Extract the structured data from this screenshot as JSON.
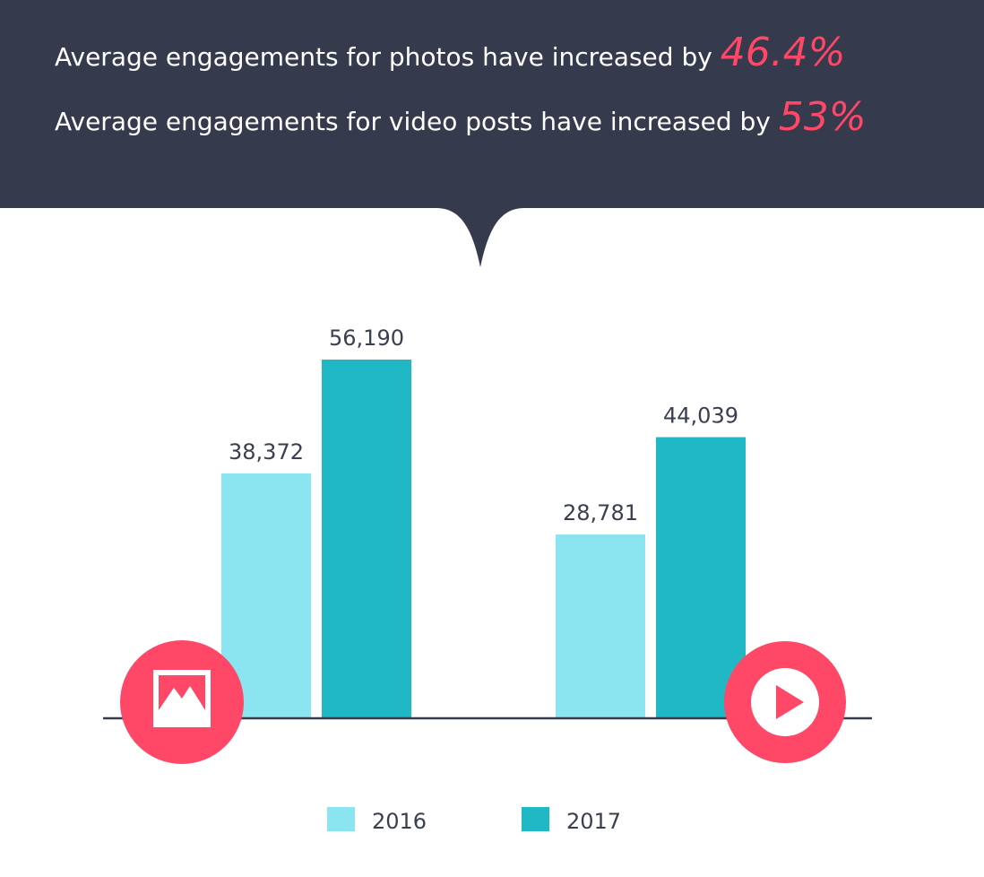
{
  "headline": {
    "line1_text": "Average engagements for photos have increased by",
    "line1_pct": "46.4%",
    "line2_text": "Average engagements for video posts have increased by",
    "line2_pct": "53%"
  },
  "colors": {
    "banner": "#353a4d",
    "accent": "#ff4767",
    "series_2016": "#8ae5f1",
    "series_2017": "#21b8c5",
    "baseline": "#353a4d",
    "label_text": "#3a3f4f"
  },
  "icons": {
    "photos": "image-icon",
    "videos": "play-icon"
  },
  "chart_data": {
    "type": "bar",
    "categories": [
      "Photos",
      "Video posts"
    ],
    "series": [
      {
        "name": "2016",
        "values": [
          38372,
          28781
        ],
        "labels": [
          "38,372",
          "28,781"
        ]
      },
      {
        "name": "2017",
        "values": [
          56190,
          44039
        ],
        "labels": [
          "56,190",
          "44,039"
        ]
      }
    ],
    "legend": [
      "2016",
      "2017"
    ],
    "legend_position": "bottom",
    "ylim": [
      0,
      60000
    ],
    "grid": false
  }
}
